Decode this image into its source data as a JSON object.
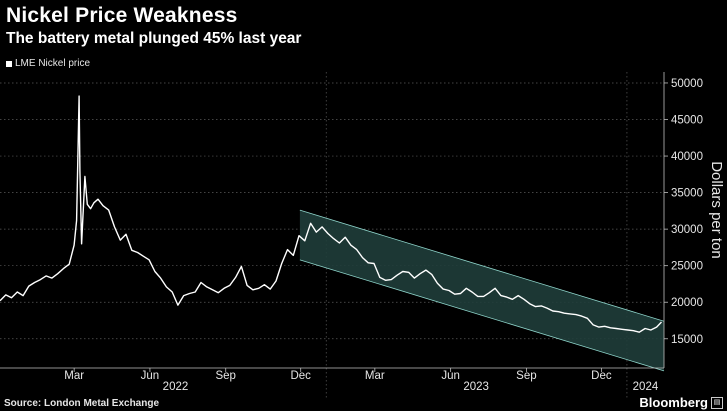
{
  "title": "Nickel Price Weakness",
  "subtitle": "The battery metal plunged 45% last year",
  "source": "Source: London Metal Exchange",
  "brand": "Bloomberg",
  "colors": {
    "background": "#000000",
    "line": "#ffffff",
    "channel_fill": "#1f3d3a",
    "channel_edge": "#8fd6cc"
  },
  "chart_data": {
    "type": "line",
    "title": "Nickel Price Weakness",
    "subtitle": "The battery metal plunged 45% last year",
    "ylabel": "Dollars per ton",
    "ylim": [
      11000,
      51500
    ],
    "yticks": [
      15000,
      20000,
      25000,
      30000,
      35000,
      40000,
      45000,
      50000
    ],
    "ytick_labels": [
      "15000",
      "20000",
      "25000",
      "30000",
      "35000",
      "40000",
      "45000",
      "50000"
    ],
    "xlim": [
      "2021-12-01",
      "2024-02-15"
    ],
    "month_ticks": [
      {
        "date": "2022-03-01",
        "label": "Mar"
      },
      {
        "date": "2022-06-01",
        "label": "Jun"
      },
      {
        "date": "2022-09-01",
        "label": "Sep"
      },
      {
        "date": "2022-12-01",
        "label": "Dec"
      },
      {
        "date": "2023-03-01",
        "label": "Mar"
      },
      {
        "date": "2023-06-01",
        "label": "Jun"
      },
      {
        "date": "2023-09-01",
        "label": "Sep"
      },
      {
        "date": "2023-12-01",
        "label": "Dec"
      }
    ],
    "year_labels": [
      {
        "label": "2022",
        "from": "2022-01-01",
        "to": "2022-12-31"
      },
      {
        "label": "2023",
        "from": "2023-01-01",
        "to": "2023-12-31"
      },
      {
        "label": "2024",
        "from": "2024-01-01",
        "to": "2024-02-15"
      }
    ],
    "grid": true,
    "legend": "top-left",
    "series": [
      {
        "name": "LME Nickel price",
        "x": [
          "2021-12-01",
          "2021-12-08",
          "2021-12-15",
          "2021-12-22",
          "2021-12-29",
          "2022-01-05",
          "2022-01-12",
          "2022-01-19",
          "2022-01-26",
          "2022-02-02",
          "2022-02-09",
          "2022-02-16",
          "2022-02-23",
          "2022-03-01",
          "2022-03-04",
          "2022-03-07",
          "2022-03-08",
          "2022-03-10",
          "2022-03-14",
          "2022-03-17",
          "2022-03-21",
          "2022-03-25",
          "2022-03-30",
          "2022-04-05",
          "2022-04-12",
          "2022-04-19",
          "2022-04-26",
          "2022-05-03",
          "2022-05-10",
          "2022-05-17",
          "2022-05-24",
          "2022-05-31",
          "2022-06-07",
          "2022-06-14",
          "2022-06-21",
          "2022-06-28",
          "2022-07-05",
          "2022-07-12",
          "2022-07-19",
          "2022-07-26",
          "2022-08-02",
          "2022-08-09",
          "2022-08-16",
          "2022-08-23",
          "2022-08-30",
          "2022-09-06",
          "2022-09-13",
          "2022-09-20",
          "2022-09-27",
          "2022-10-04",
          "2022-10-11",
          "2022-10-18",
          "2022-10-25",
          "2022-11-01",
          "2022-11-08",
          "2022-11-15",
          "2022-11-22",
          "2022-11-29",
          "2022-12-06",
          "2022-12-13",
          "2022-12-20",
          "2022-12-27",
          "2023-01-03",
          "2023-01-10",
          "2023-01-17",
          "2023-01-24",
          "2023-01-31",
          "2023-02-07",
          "2023-02-14",
          "2023-02-21",
          "2023-02-28",
          "2023-03-07",
          "2023-03-14",
          "2023-03-21",
          "2023-03-28",
          "2023-04-04",
          "2023-04-11",
          "2023-04-18",
          "2023-04-25",
          "2023-05-02",
          "2023-05-09",
          "2023-05-16",
          "2023-05-23",
          "2023-05-30",
          "2023-06-06",
          "2023-06-13",
          "2023-06-20",
          "2023-06-27",
          "2023-07-04",
          "2023-07-11",
          "2023-07-18",
          "2023-07-25",
          "2023-08-01",
          "2023-08-08",
          "2023-08-15",
          "2023-08-22",
          "2023-08-29",
          "2023-09-05",
          "2023-09-12",
          "2023-09-19",
          "2023-09-26",
          "2023-10-03",
          "2023-10-10",
          "2023-10-17",
          "2023-10-24",
          "2023-10-31",
          "2023-11-07",
          "2023-11-14",
          "2023-11-21",
          "2023-11-28",
          "2023-12-05",
          "2023-12-12",
          "2023-12-19",
          "2023-12-26",
          "2024-01-02",
          "2024-01-09",
          "2024-01-16",
          "2024-01-23",
          "2024-01-30",
          "2024-02-06",
          "2024-02-12"
        ],
        "values": [
          20200,
          21000,
          20600,
          21400,
          20900,
          22200,
          22700,
          23100,
          23600,
          23300,
          23900,
          24600,
          25200,
          27800,
          31200,
          48200,
          38000,
          28000,
          37200,
          33400,
          32800,
          33600,
          34100,
          33200,
          32600,
          30300,
          28500,
          29300,
          27100,
          26800,
          26300,
          25800,
          24200,
          23300,
          22100,
          21400,
          19600,
          20900,
          21200,
          21400,
          22700,
          22100,
          21700,
          21300,
          21900,
          22300,
          23400,
          24900,
          22300,
          21700,
          21900,
          22400,
          21800,
          22900,
          25300,
          27200,
          26400,
          29100,
          28400,
          30800,
          29600,
          30300,
          29400,
          28700,
          28100,
          28900,
          27800,
          27200,
          26100,
          25400,
          25300,
          23400,
          23000,
          23100,
          23700,
          24200,
          24100,
          23300,
          23900,
          24400,
          23800,
          22600,
          21800,
          21600,
          21100,
          21200,
          21900,
          21400,
          20800,
          20800,
          21300,
          21900,
          20900,
          20700,
          20400,
          20900,
          20400,
          19800,
          19400,
          19500,
          19200,
          18800,
          18700,
          18500,
          18400,
          18300,
          18100,
          17800,
          16900,
          16600,
          16700,
          16500,
          16400,
          16300,
          16200,
          16100,
          15900,
          16400,
          16200,
          16600,
          17300
        ]
      }
    ],
    "trend_channel": {
      "from": "2022-11-30",
      "to": "2024-02-15",
      "upper": [
        32600,
        17400
      ],
      "lower": [
        25800,
        10600
      ]
    }
  }
}
